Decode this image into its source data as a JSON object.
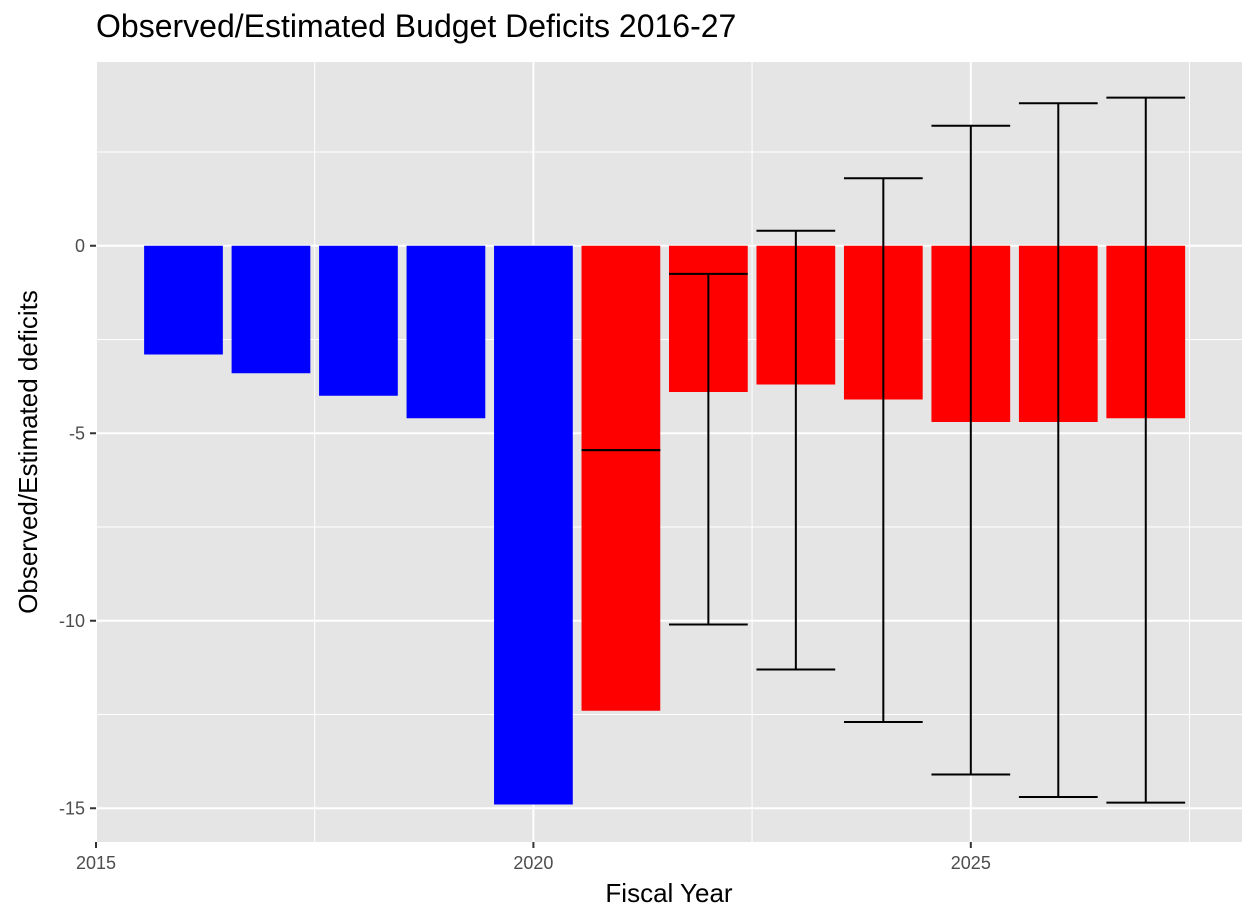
{
  "chart_data": {
    "type": "bar",
    "title": "Observed/Estimated Budget Deficits 2016-27",
    "xlabel": "Fiscal Year",
    "ylabel": "Observed/Estimated deficits",
    "xlim": [
      2015,
      2028.1
    ],
    "ylim": [
      -15.9,
      4.9
    ],
    "x_ticks": [
      2015,
      2020,
      2025
    ],
    "y_ticks": [
      0,
      -5,
      -10,
      -15
    ],
    "grid": true,
    "legend": "none",
    "colors": {
      "observed": "#0000ff",
      "estimated": "#ff0000",
      "panel": "#e5e5e5",
      "grid": "#ffffff",
      "error_bar": "#000000"
    },
    "bars": [
      {
        "year": 2016,
        "value": -2.9,
        "kind": "observed"
      },
      {
        "year": 2017,
        "value": -3.4,
        "kind": "observed"
      },
      {
        "year": 2018,
        "value": -4.0,
        "kind": "observed"
      },
      {
        "year": 2019,
        "value": -4.6,
        "kind": "observed"
      },
      {
        "year": 2020,
        "value": -14.9,
        "kind": "observed"
      },
      {
        "year": 2021,
        "value": -12.4,
        "kind": "estimated"
      },
      {
        "year": 2022,
        "value": -3.9,
        "kind": "estimated"
      },
      {
        "year": 2023,
        "value": -3.7,
        "kind": "estimated"
      },
      {
        "year": 2024,
        "value": -4.1,
        "kind": "estimated"
      },
      {
        "year": 2025,
        "value": -4.7,
        "kind": "estimated"
      },
      {
        "year": 2026,
        "value": -4.7,
        "kind": "estimated"
      },
      {
        "year": 2027,
        "value": -4.6,
        "kind": "estimated"
      }
    ],
    "error_bars": [
      {
        "year": 2021,
        "low": -5.45,
        "high": -5.45
      },
      {
        "year": 2022,
        "low": -10.1,
        "high": -0.75
      },
      {
        "year": 2023,
        "low": -11.3,
        "high": 0.4
      },
      {
        "year": 2024,
        "low": -12.7,
        "high": 1.8
      },
      {
        "year": 2025,
        "low": -14.1,
        "high": 3.2
      },
      {
        "year": 2026,
        "low": -14.7,
        "high": 3.8
      },
      {
        "year": 2027,
        "low": -14.85,
        "high": 3.95
      }
    ]
  }
}
